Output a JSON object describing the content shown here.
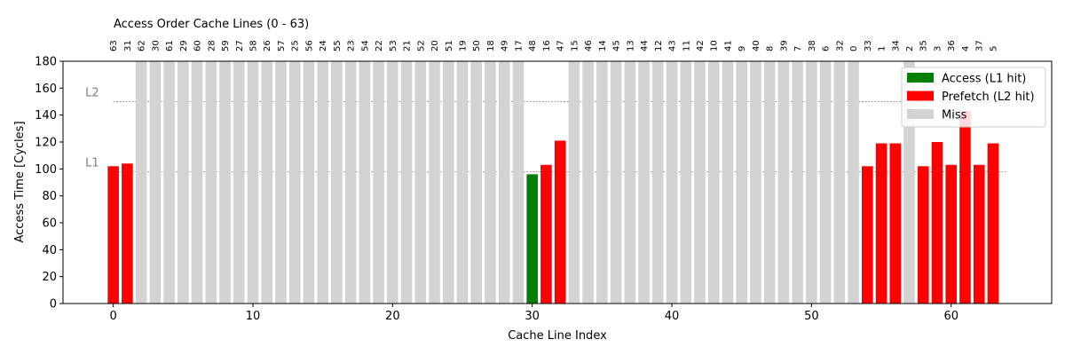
{
  "chart_data": {
    "type": "bar",
    "title": "Access Order Cache Lines (0 - 63)",
    "xlabel": "Cache Line Index",
    "ylabel": "Access Time [Cycles]",
    "xlim": [
      -3.6,
      67.2
    ],
    "ylim": [
      0,
      180
    ],
    "x_ticks": [
      0,
      10,
      20,
      30,
      40,
      50,
      60
    ],
    "y_ticks": [
      0,
      20,
      40,
      60,
      80,
      100,
      120,
      140,
      160,
      180
    ],
    "access_order": [
      63,
      31,
      62,
      30,
      61,
      29,
      60,
      28,
      59,
      27,
      58,
      26,
      57,
      25,
      56,
      24,
      55,
      23,
      54,
      22,
      53,
      21,
      52,
      20,
      51,
      19,
      50,
      18,
      49,
      17,
      48,
      16,
      47,
      15,
      46,
      14,
      45,
      13,
      44,
      12,
      43,
      11,
      42,
      10,
      41,
      9,
      40,
      8,
      39,
      7,
      38,
      6,
      32,
      0,
      33,
      1,
      34,
      2,
      35,
      3,
      36,
      4,
      37,
      5
    ],
    "values": [
      102,
      104,
      180,
      180,
      180,
      180,
      180,
      180,
      180,
      180,
      180,
      180,
      180,
      180,
      180,
      180,
      180,
      180,
      180,
      180,
      180,
      180,
      180,
      180,
      180,
      180,
      180,
      180,
      180,
      180,
      96,
      103,
      121,
      180,
      180,
      180,
      180,
      180,
      180,
      180,
      180,
      180,
      180,
      180,
      180,
      180,
      180,
      180,
      180,
      180,
      180,
      180,
      180,
      180,
      102,
      119,
      119,
      180,
      102,
      120,
      103,
      143,
      103,
      119
    ],
    "status": [
      "P",
      "P",
      "M",
      "M",
      "M",
      "M",
      "M",
      "M",
      "M",
      "M",
      "M",
      "M",
      "M",
      "M",
      "M",
      "M",
      "M",
      "M",
      "M",
      "M",
      "M",
      "M",
      "M",
      "M",
      "M",
      "M",
      "M",
      "M",
      "M",
      "M",
      "A",
      "P",
      "P",
      "M",
      "M",
      "M",
      "M",
      "M",
      "M",
      "M",
      "M",
      "M",
      "M",
      "M",
      "M",
      "M",
      "M",
      "M",
      "M",
      "M",
      "M",
      "M",
      "M",
      "M",
      "P",
      "P",
      "P",
      "M",
      "P",
      "P",
      "P",
      "P",
      "P",
      "P"
    ],
    "levels": [
      {
        "label": "L1",
        "value": 98
      },
      {
        "label": "L2",
        "value": 150
      }
    ],
    "legend": {
      "placement": "top-right",
      "entries": [
        {
          "key": "A",
          "label": "Access (L1 hit)",
          "color": "#008000"
        },
        {
          "key": "P",
          "label": "Prefetch (L2 hit)",
          "color": "#ff0000"
        },
        {
          "key": "M",
          "label": "Miss",
          "color": "#d3d3d3"
        }
      ]
    },
    "grid": false
  }
}
